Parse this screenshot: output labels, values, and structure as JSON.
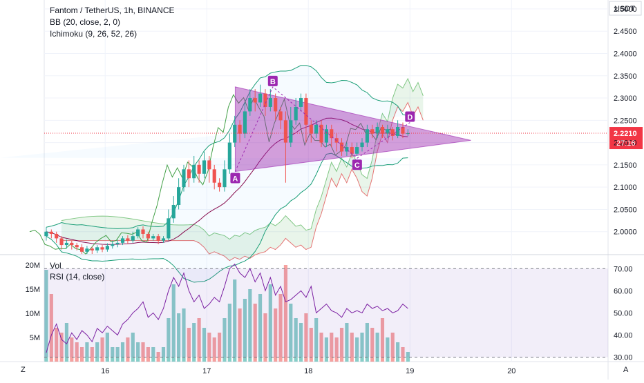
{
  "legend": {
    "title": "Fantom / TetherUS, 1h, BINANCE",
    "bb": "BB (20, close, 2, 0)",
    "ichimoku": "Ichimoku (9, 26, 52, 26)",
    "vol": "Vol",
    "rsi": "RSI (14, close)"
  },
  "corners": {
    "left": "Z",
    "right": "A"
  },
  "colors": {
    "up": "#26a69a",
    "down": "#ef5350",
    "bb": "#1a9e77",
    "rsi": "#7b1fa2",
    "pattern": "#9c27b0",
    "price_line": "#f23645"
  },
  "chart_data": [
    {
      "type": "candlestick",
      "title": "Fantom / TetherUS, 1h, BINANCE",
      "currency": "USDT",
      "y_ticks": [
        "2.5000",
        "2.4500",
        "2.4000",
        "2.3500",
        "2.3000",
        "2.2500",
        "2.2000",
        "2.1500",
        "2.1000",
        "2.0500",
        "2.0000"
      ],
      "y_range": [
        1.95,
        2.52
      ],
      "x_ticks": [
        "16",
        "17",
        "18",
        "19",
        "20"
      ],
      "x_range": [
        15.4,
        20.95
      ],
      "last_price": "2.2210",
      "countdown": "27:16",
      "pattern_points": [
        {
          "label": "A",
          "x": 17.28,
          "y": 2.135
        },
        {
          "label": "B",
          "x": 17.65,
          "y": 2.325
        },
        {
          "label": "C",
          "x": 18.48,
          "y": 2.165
        },
        {
          "label": "D",
          "x": 19.0,
          "y": 2.245
        }
      ],
      "triangle": {
        "apex_x": 19.6,
        "apex_y": 2.205,
        "top": [
          17.28,
          2.325
        ],
        "bottom": [
          17.28,
          2.135
        ]
      },
      "candles": [
        [
          1.99,
          2.0,
          1.98,
          2.01
        ],
        [
          2.0,
          1.995,
          1.985,
          2.005
        ],
        [
          1.995,
          1.985,
          1.975,
          2.0
        ],
        [
          1.985,
          1.97,
          1.96,
          1.99
        ],
        [
          1.97,
          1.975,
          1.962,
          1.982
        ],
        [
          1.975,
          1.97,
          1.96,
          1.98
        ],
        [
          1.97,
          1.965,
          1.958,
          1.975
        ],
        [
          1.965,
          1.955,
          1.95,
          1.972
        ],
        [
          1.955,
          1.962,
          1.95,
          1.968
        ],
        [
          1.962,
          1.958,
          1.95,
          1.966
        ],
        [
          1.958,
          1.965,
          1.952,
          1.97
        ],
        [
          1.965,
          1.96,
          1.954,
          1.97
        ],
        [
          1.96,
          1.968,
          1.955,
          1.974
        ],
        [
          1.968,
          1.972,
          1.962,
          1.98
        ],
        [
          1.972,
          1.975,
          1.965,
          1.982
        ],
        [
          1.975,
          1.985,
          1.97,
          1.99
        ],
        [
          1.985,
          1.98,
          1.972,
          1.992
        ],
        [
          1.98,
          1.99,
          1.975,
          2.0
        ],
        [
          1.99,
          2.005,
          1.985,
          2.01
        ],
        [
          2.005,
          1.995,
          1.985,
          2.012
        ],
        [
          1.995,
          1.985,
          1.978,
          2.0
        ],
        [
          1.985,
          1.99,
          1.98,
          1.995
        ],
        [
          1.99,
          1.98,
          1.972,
          1.995
        ],
        [
          1.98,
          1.985,
          1.975,
          1.99
        ],
        [
          1.985,
          2.03,
          1.98,
          2.05
        ],
        [
          2.03,
          2.06,
          2.02,
          2.08
        ],
        [
          2.06,
          2.1,
          2.05,
          2.12
        ],
        [
          2.1,
          2.14,
          2.09,
          2.15
        ],
        [
          2.14,
          2.12,
          2.1,
          2.16
        ],
        [
          2.12,
          2.15,
          2.11,
          2.17
        ],
        [
          2.15,
          2.13,
          2.11,
          2.16
        ],
        [
          2.13,
          2.16,
          2.12,
          2.18
        ],
        [
          2.16,
          2.14,
          2.11,
          2.17
        ],
        [
          2.14,
          2.11,
          2.095,
          2.15
        ],
        [
          2.11,
          2.1,
          2.09,
          2.12
        ],
        [
          2.1,
          2.14,
          2.09,
          2.16
        ],
        [
          2.14,
          2.2,
          2.13,
          2.22
        ],
        [
          2.2,
          2.24,
          2.19,
          2.26
        ],
        [
          2.24,
          2.22,
          2.2,
          2.25
        ],
        [
          2.22,
          2.27,
          2.21,
          2.29
        ],
        [
          2.27,
          2.3,
          2.26,
          2.32
        ],
        [
          2.3,
          2.29,
          2.27,
          2.32
        ],
        [
          2.29,
          2.31,
          2.28,
          2.33
        ],
        [
          2.31,
          2.28,
          2.26,
          2.32
        ],
        [
          2.28,
          2.3,
          2.27,
          2.32
        ],
        [
          2.3,
          2.27,
          2.25,
          2.31
        ],
        [
          2.27,
          2.25,
          2.23,
          2.28
        ],
        [
          2.25,
          2.2,
          2.11,
          2.27
        ],
        [
          2.2,
          2.25,
          2.19,
          2.28
        ],
        [
          2.25,
          2.28,
          2.24,
          2.3
        ],
        [
          2.28,
          2.3,
          2.27,
          2.31
        ],
        [
          2.3,
          2.24,
          2.2,
          2.31
        ],
        [
          2.24,
          2.22,
          2.2,
          2.25
        ],
        [
          2.22,
          2.24,
          2.21,
          2.25
        ],
        [
          2.24,
          2.2,
          2.19,
          2.25
        ],
        [
          2.2,
          2.23,
          2.19,
          2.24
        ],
        [
          2.23,
          2.21,
          2.19,
          2.24
        ],
        [
          2.21,
          2.2,
          2.18,
          2.22
        ],
        [
          2.2,
          2.18,
          2.17,
          2.21
        ],
        [
          2.18,
          2.19,
          2.17,
          2.2
        ],
        [
          2.19,
          2.175,
          2.165,
          2.2
        ],
        [
          2.175,
          2.19,
          2.17,
          2.2
        ],
        [
          2.19,
          2.2,
          2.18,
          2.21
        ],
        [
          2.2,
          2.23,
          2.19,
          2.24
        ],
        [
          2.23,
          2.22,
          2.21,
          2.24
        ],
        [
          2.22,
          2.235,
          2.21,
          2.245
        ],
        [
          2.235,
          2.22,
          2.21,
          2.24
        ],
        [
          2.22,
          2.23,
          2.21,
          2.24
        ],
        [
          2.23,
          2.215,
          2.205,
          2.235
        ],
        [
          2.215,
          2.235,
          2.21,
          2.25
        ],
        [
          2.235,
          2.22,
          2.21,
          2.245
        ],
        [
          2.22,
          2.221,
          2.215,
          2.23
        ]
      ]
    },
    {
      "type": "bar",
      "title": "Vol",
      "y_ticks": [
        "20M",
        "15M",
        "10M",
        "5M"
      ],
      "y_range": [
        0,
        22000000
      ],
      "values": [
        19,
        14,
        7,
        6,
        8,
        5,
        4,
        3,
        4,
        3,
        4,
        5,
        6,
        3,
        3,
        4,
        5,
        6,
        4,
        4,
        3,
        3,
        2,
        3,
        9,
        16,
        10,
        11,
        7,
        8,
        9,
        7,
        6,
        5,
        6,
        9,
        12,
        17,
        11,
        13,
        15,
        12,
        14,
        10,
        16,
        11,
        14,
        20,
        12,
        9,
        8,
        10,
        7,
        9,
        6,
        5,
        6,
        5,
        7,
        8,
        6,
        5,
        6,
        8,
        7,
        6,
        9,
        5,
        6,
        4,
        3,
        2
      ]
    },
    {
      "type": "line",
      "title": "RSI (14, close)",
      "y_ticks": [
        "70.00",
        "60.00",
        "50.00",
        "40.00",
        "30.00"
      ],
      "y_range": [
        28,
        76
      ],
      "band": [
        30,
        70
      ],
      "values": [
        32,
        40,
        45,
        38,
        36,
        41,
        38,
        42,
        40,
        37,
        43,
        41,
        44,
        42,
        40,
        45,
        47,
        50,
        52,
        55,
        48,
        50,
        47,
        52,
        60,
        66,
        62,
        68,
        60,
        55,
        58,
        52,
        54,
        57,
        55,
        62,
        70,
        72,
        68,
        66,
        70,
        64,
        68,
        60,
        66,
        58,
        62,
        55,
        56,
        58,
        60,
        57,
        62,
        50,
        52,
        54,
        51,
        50,
        48,
        52,
        50,
        51,
        50,
        54,
        52,
        53,
        51,
        52,
        50,
        51,
        54,
        52
      ]
    }
  ]
}
